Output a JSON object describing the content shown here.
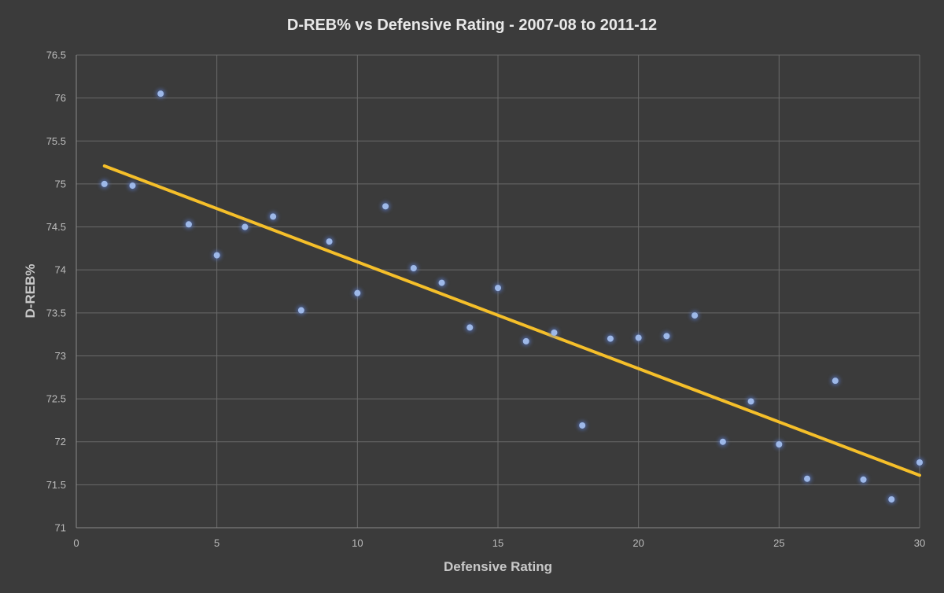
{
  "chart_data": {
    "type": "scatter",
    "title": "D-REB% vs Defensive Rating - 2007-08 to 2011-12",
    "xlabel": "Defensive Rating",
    "ylabel": "D-REB%",
    "xlim": [
      0,
      30
    ],
    "ylim": [
      71,
      76.5
    ],
    "x_ticks": [
      0,
      5,
      10,
      15,
      20,
      25,
      30
    ],
    "y_ticks": [
      71,
      71.5,
      72,
      72.5,
      73,
      73.5,
      74,
      74.5,
      75,
      75.5,
      76,
      76.5
    ],
    "grid": true,
    "legend": "none",
    "point_color": "#9db8e8",
    "trendline_color": "#f5bf2a",
    "series": [
      {
        "points": [
          {
            "x": 1,
            "y": 75.0
          },
          {
            "x": 2,
            "y": 74.98
          },
          {
            "x": 3,
            "y": 76.05
          },
          {
            "x": 4,
            "y": 74.53
          },
          {
            "x": 5,
            "y": 74.17
          },
          {
            "x": 6,
            "y": 74.5
          },
          {
            "x": 7,
            "y": 74.62
          },
          {
            "x": 8,
            "y": 73.53
          },
          {
            "x": 9,
            "y": 74.33
          },
          {
            "x": 10,
            "y": 73.73
          },
          {
            "x": 11,
            "y": 74.74
          },
          {
            "x": 12,
            "y": 74.02
          },
          {
            "x": 13,
            "y": 73.85
          },
          {
            "x": 14,
            "y": 73.33
          },
          {
            "x": 15,
            "y": 73.79
          },
          {
            "x": 16,
            "y": 73.17
          },
          {
            "x": 17,
            "y": 73.27
          },
          {
            "x": 18,
            "y": 72.19
          },
          {
            "x": 19,
            "y": 73.2
          },
          {
            "x": 20,
            "y": 73.21
          },
          {
            "x": 21,
            "y": 73.23
          },
          {
            "x": 22,
            "y": 73.47
          },
          {
            "x": 23,
            "y": 72.0
          },
          {
            "x": 24,
            "y": 72.47
          },
          {
            "x": 25,
            "y": 71.97
          },
          {
            "x": 26,
            "y": 71.57
          },
          {
            "x": 27,
            "y": 72.71
          },
          {
            "x": 28,
            "y": 71.56
          },
          {
            "x": 29,
            "y": 71.33
          },
          {
            "x": 30,
            "y": 71.76
          }
        ]
      }
    ],
    "trendline": {
      "x": [
        1,
        30
      ],
      "y": [
        75.21,
        71.61
      ]
    }
  }
}
